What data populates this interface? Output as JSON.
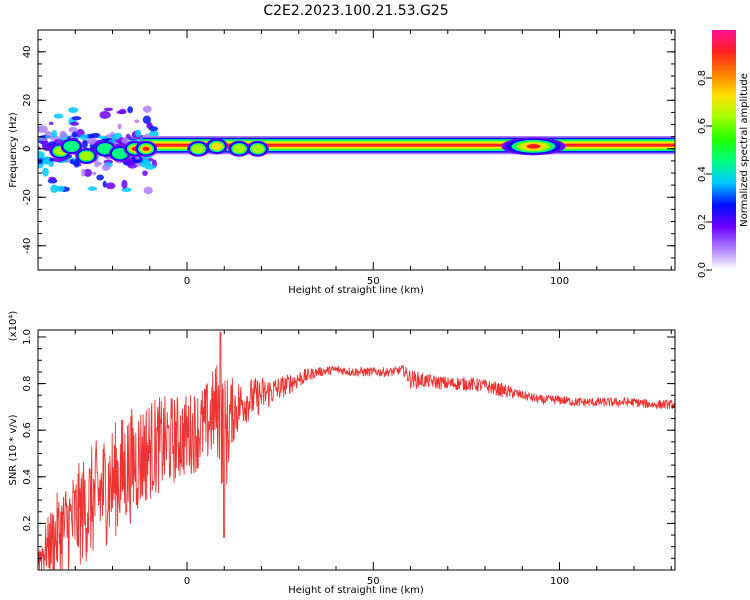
{
  "page": {
    "title": "C2E2.2023.100.21.53.G25"
  },
  "chart_data": [
    {
      "type": "heatmap",
      "xlabel": "Height of straight line (km)",
      "ylabel": "Frequency (Hz)",
      "xlim": [
        -40,
        131
      ],
      "ylim": [
        -50,
        49
      ],
      "x_ticks": [
        0,
        50,
        100
      ],
      "y_ticks": [
        -40,
        -20,
        0,
        20,
        40
      ],
      "grid": false,
      "colorbar": {
        "label": "Normalized spectral amplitude",
        "range": [
          0,
          1
        ],
        "ticks": [
          0.0,
          0.2,
          0.4,
          0.6,
          0.8
        ],
        "colormap": [
          "#ffffff",
          "#ad7cff",
          "#6a00ff",
          "#0010ff",
          "#00c8ff",
          "#00ff80",
          "#22ff00",
          "#a0ff00",
          "#ffe000",
          "#ff8000",
          "#ff2020",
          "#ff1090"
        ]
      },
      "signal_band": {
        "center_hz": 1.5,
        "half_width_hz": 1.2
      },
      "hotspots": [
        {
          "x": -34,
          "y": -1,
          "amplitude": 0.5
        },
        {
          "x": -31,
          "y": 1,
          "amplitude": 0.35
        },
        {
          "x": -27,
          "y": -3,
          "amplitude": 0.55
        },
        {
          "x": -22,
          "y": 0,
          "amplitude": 0.4
        },
        {
          "x": -18,
          "y": -2,
          "amplitude": 0.35
        },
        {
          "x": -14,
          "y": 0,
          "amplitude": 0.9
        },
        {
          "x": -11,
          "y": 0,
          "amplitude": 0.85
        },
        {
          "x": 3,
          "y": 0,
          "amplitude": 0.5
        },
        {
          "x": 8,
          "y": 1,
          "amplitude": 0.6
        },
        {
          "x": 14,
          "y": 0,
          "amplitude": 0.5
        },
        {
          "x": 19,
          "y": 0,
          "amplitude": 0.55
        },
        {
          "x": 93,
          "y": 1,
          "amplitude": 0.35
        }
      ]
    },
    {
      "type": "line",
      "xlabel": "Height of straight line (km)",
      "ylabel": "SNR (10 * v/v)",
      "y_multiplier": "(x10⁴)",
      "xlim": [
        -40,
        131
      ],
      "ylim": [
        0,
        1.03
      ],
      "x_ticks": [
        0,
        50,
        100
      ],
      "y_ticks": [
        0.2,
        0.4,
        0.6,
        0.8,
        1.0
      ],
      "grid": false,
      "series": [
        {
          "color": "#ee3333",
          "envelope": {
            "x": [
              -40,
              -35,
              -30,
              -25,
              -20,
              -15,
              -10,
              -5,
              0,
              5,
              8,
              10,
              12,
              15,
              20,
              25,
              30,
              35,
              40,
              45,
              50,
              55,
              58,
              60,
              65,
              70,
              75,
              80,
              85,
              90,
              95,
              100,
              105,
              110,
              115,
              120,
              125,
              131
            ],
            "mean": [
              0.05,
              0.15,
              0.22,
              0.3,
              0.38,
              0.45,
              0.52,
              0.55,
              0.58,
              0.62,
              0.7,
              0.55,
              0.68,
              0.72,
              0.75,
              0.78,
              0.82,
              0.85,
              0.86,
              0.85,
              0.85,
              0.85,
              0.86,
              0.82,
              0.81,
              0.8,
              0.8,
              0.79,
              0.77,
              0.75,
              0.73,
              0.73,
              0.72,
              0.72,
              0.72,
              0.72,
              0.71,
              0.71
            ],
            "spread": [
              0.06,
              0.18,
              0.22,
              0.25,
              0.25,
              0.25,
              0.22,
              0.2,
              0.18,
              0.18,
              0.2,
              0.3,
              0.15,
              0.1,
              0.08,
              0.05,
              0.04,
              0.02,
              0.02,
              0.02,
              0.02,
              0.02,
              0.02,
              0.04,
              0.03,
              0.03,
              0.03,
              0.03,
              0.03,
              0.02,
              0.02,
              0.02,
              0.02,
              0.02,
              0.02,
              0.02,
              0.02,
              0.02
            ]
          },
          "peak": {
            "x": 9,
            "y": 1.02
          },
          "dip": {
            "x": 10,
            "y": 0.14
          }
        }
      ]
    }
  ]
}
